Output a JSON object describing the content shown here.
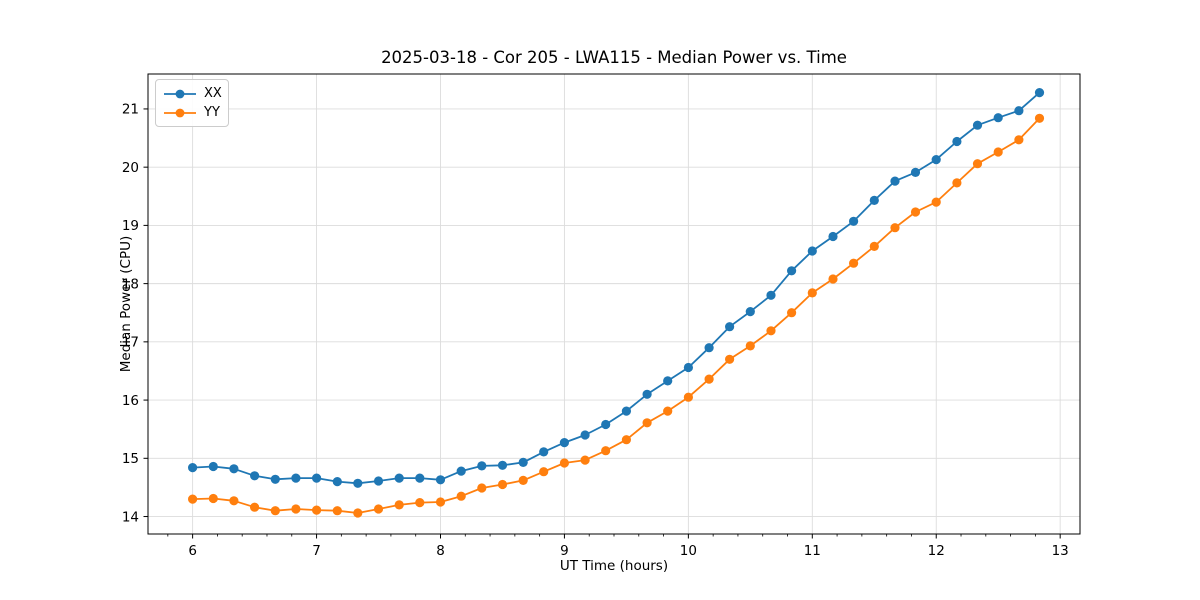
{
  "chart_data": {
    "type": "line",
    "title": "2025-03-18 - Cor 205 - LWA115 - Median Power vs. Time",
    "xlabel": "UT Time (hours)",
    "ylabel": "Median Power (CPU)",
    "xlim": [
      5.64,
      13.16
    ],
    "ylim": [
      13.7,
      21.6
    ],
    "x_ticks": [
      6,
      7,
      8,
      9,
      10,
      11,
      12,
      13
    ],
    "y_ticks": [
      14,
      15,
      16,
      17,
      18,
      19,
      20,
      21
    ],
    "x_minor_tick_step": 0.2,
    "grid": true,
    "legend_position": "upper left",
    "x": [
      6.0,
      6.167,
      6.333,
      6.5,
      6.667,
      6.833,
      7.0,
      7.167,
      7.333,
      7.5,
      7.667,
      7.833,
      8.0,
      8.167,
      8.333,
      8.5,
      8.667,
      8.833,
      9.0,
      9.167,
      9.333,
      9.5,
      9.667,
      9.833,
      10.0,
      10.167,
      10.333,
      10.5,
      10.667,
      10.833,
      11.0,
      11.167,
      11.333,
      11.5,
      11.667,
      11.833,
      12.0,
      12.167,
      12.333,
      12.5,
      12.667,
      12.833
    ],
    "series": [
      {
        "name": "XX",
        "color": "#1f77b4",
        "values": [
          14.84,
          14.86,
          14.82,
          14.7,
          14.64,
          14.66,
          14.66,
          14.6,
          14.57,
          14.61,
          14.66,
          14.66,
          14.63,
          14.78,
          14.87,
          14.88,
          14.93,
          15.11,
          15.27,
          15.4,
          15.58,
          15.81,
          16.1,
          16.33,
          16.56,
          16.9,
          17.26,
          17.52,
          17.8,
          18.22,
          18.56,
          18.81,
          19.07,
          19.43,
          19.76,
          19.91,
          20.13,
          20.44,
          20.72,
          20.85,
          20.97,
          21.28
        ]
      },
      {
        "name": "YY",
        "color": "#ff7f0e",
        "values": [
          14.3,
          14.31,
          14.27,
          14.16,
          14.1,
          14.13,
          14.11,
          14.1,
          14.06,
          14.13,
          14.2,
          14.24,
          14.25,
          14.35,
          14.49,
          14.55,
          14.62,
          14.77,
          14.92,
          14.97,
          15.13,
          15.32,
          15.61,
          15.81,
          16.05,
          16.36,
          16.7,
          16.93,
          17.19,
          17.5,
          17.84,
          18.08,
          18.35,
          18.64,
          18.96,
          19.23,
          19.4,
          19.73,
          20.06,
          20.26,
          20.47,
          20.84
        ]
      }
    ],
    "style": {
      "grid_color": "#dcdcdc",
      "spine_color": "#000000",
      "tick_label_color": "#000000",
      "background": "#ffffff"
    }
  }
}
